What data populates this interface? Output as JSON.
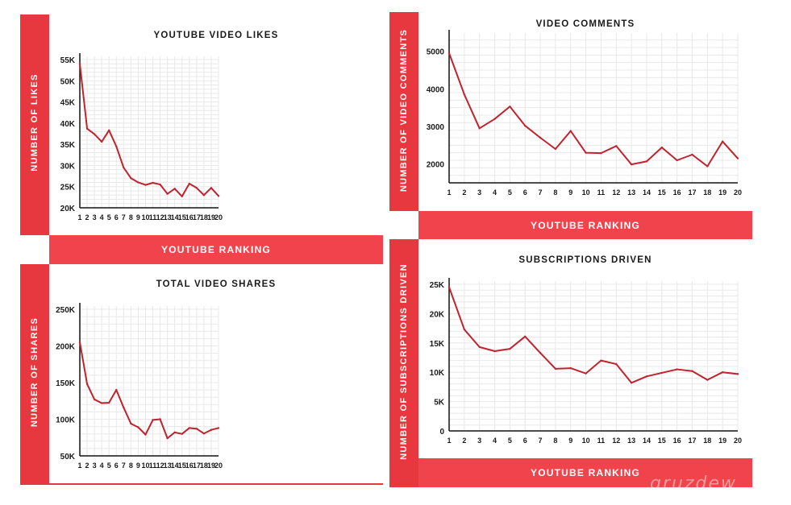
{
  "charts": {
    "likes": {
      "title": "YOUTUBE VIDEO LIKES",
      "ylabel": "NUMBER OF LIKES",
      "xlabel": "YOUTUBE RANKING"
    },
    "comments": {
      "title": "VIDEO COMMENTS",
      "ylabel": "NUMBER OF VIDEO COMMENTS",
      "xlabel": "YOUTUBE RANKING"
    },
    "shares": {
      "title": "TOTAL VIDEO SHARES",
      "ylabel": "NUMBER OF SHARES"
    },
    "subs": {
      "title": "SUBSCRIPTIONS DRIVEN",
      "ylabel": "NUMBER OF SUBSCRIPTIONS DRIVEN",
      "xlabel": "YOUTUBE RANKING"
    }
  },
  "watermark": "qruzdew",
  "colors": {
    "accent": "#e8383f",
    "line": "#c0232e",
    "grid": "#e8e8e8"
  },
  "chart_data": [
    {
      "id": "likes",
      "type": "line",
      "title": "YOUTUBE VIDEO LIKES",
      "xlabel": "YOUTUBE RANKING",
      "ylabel": "NUMBER OF LIKES",
      "x": [
        1,
        2,
        3,
        4,
        5,
        6,
        7,
        8,
        9,
        10,
        11,
        12,
        13,
        14,
        15,
        16,
        17,
        18,
        19,
        20
      ],
      "values": [
        54000,
        38700,
        37400,
        35600,
        38300,
        34500,
        29500,
        27000,
        26000,
        25400,
        25900,
        25500,
        23300,
        24500,
        22700,
        25700,
        24700,
        23000,
        24700,
        22800
      ],
      "ylim": [
        20000,
        55000
      ],
      "yticks": [
        20000,
        25000,
        30000,
        35000,
        40000,
        45000,
        50000,
        55000
      ],
      "ytick_labels": [
        "20K",
        "25K",
        "30K",
        "35K",
        "40K",
        "45K",
        "50K",
        "55K"
      ],
      "grid": true
    },
    {
      "id": "comments",
      "type": "line",
      "title": "VIDEO COMMENTS",
      "xlabel": "YOUTUBE RANKING",
      "ylabel": "NUMBER OF VIDEO COMMENTS",
      "x": [
        1,
        2,
        3,
        4,
        5,
        6,
        7,
        8,
        9,
        10,
        11,
        12,
        13,
        14,
        15,
        16,
        17,
        18,
        19,
        20
      ],
      "values": [
        4950,
        3850,
        2950,
        3200,
        3530,
        3020,
        2700,
        2400,
        2880,
        2300,
        2290,
        2480,
        1990,
        2070,
        2440,
        2100,
        2250,
        1940,
        2600,
        2150
      ],
      "ylim": [
        1500,
        5400
      ],
      "yticks": [
        2000,
        3000,
        4000,
        5000
      ],
      "ytick_labels": [
        "2000",
        "3000",
        "4000",
        "5000"
      ],
      "grid": true
    },
    {
      "id": "shares",
      "type": "line",
      "title": "TOTAL VIDEO SHARES",
      "ylabel": "NUMBER OF SHARES",
      "x": [
        1,
        2,
        3,
        4,
        5,
        6,
        7,
        8,
        9,
        10,
        11,
        12,
        13,
        14,
        15,
        16,
        17,
        18,
        19,
        20
      ],
      "values": [
        205000,
        148000,
        127000,
        122000,
        122500,
        140000,
        116000,
        94000,
        89000,
        79000,
        99000,
        100000,
        74000,
        82000,
        80000,
        88000,
        87000,
        80500,
        85500,
        88000
      ],
      "ylim": [
        50000,
        250000
      ],
      "yticks": [
        50000,
        100000,
        150000,
        200000,
        250000
      ],
      "ytick_labels": [
        "50K",
        "100K",
        "150K",
        "200K",
        "250K"
      ],
      "grid": true
    },
    {
      "id": "subs",
      "type": "line",
      "title": "SUBSCRIPTIONS DRIVEN",
      "xlabel": "YOUTUBE RANKING",
      "ylabel": "NUMBER OF SUBSCRIPTIONS DRIVEN",
      "x": [
        1,
        2,
        3,
        4,
        5,
        6,
        7,
        8,
        9,
        10,
        11,
        12,
        13,
        14,
        15,
        16,
        17,
        18,
        19,
        20
      ],
      "values": [
        24500,
        17300,
        14300,
        13600,
        14000,
        16100,
        13300,
        10600,
        10700,
        9800,
        12000,
        11400,
        8200,
        9300,
        9900,
        10500,
        10200,
        8700,
        10000,
        9700
      ],
      "ylim": [
        0,
        25000
      ],
      "yticks": [
        0,
        5000,
        10000,
        15000,
        20000,
        25000
      ],
      "ytick_labels": [
        "0",
        "5K",
        "10K",
        "15K",
        "20K",
        "25K"
      ],
      "grid": true
    }
  ]
}
